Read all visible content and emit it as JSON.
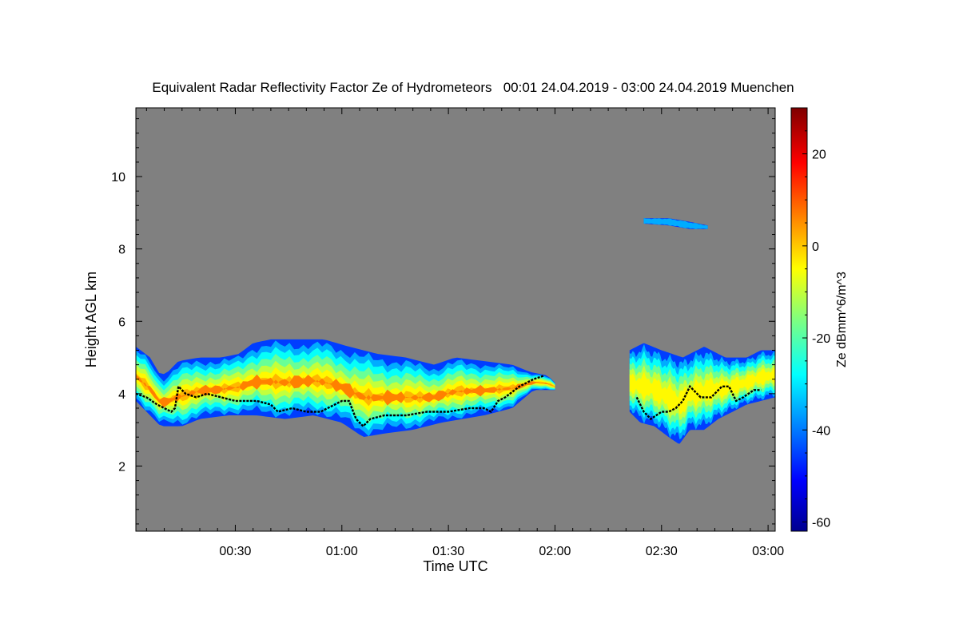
{
  "chart_data": {
    "type": "heatmap",
    "title": "Equivalent Radar Reflectivity Factor Ze of Hydrometeors   00:01 24.04.2019 - 03:00 24.04.2019 Muenchen",
    "xlabel": "Time UTC",
    "ylabel": "Height AGL km",
    "colorbar_label": "Ze dBmm^6/m^3",
    "xlim_minutes": [
      2,
      182
    ],
    "ylim_km": [
      0.2,
      11.9
    ],
    "x_ticks": [
      {
        "minutes": 30,
        "label": "00:30"
      },
      {
        "minutes": 60,
        "label": "01:00"
      },
      {
        "minutes": 90,
        "label": "01:30"
      },
      {
        "minutes": 120,
        "label": "02:00"
      },
      {
        "minutes": 150,
        "label": "02:30"
      },
      {
        "minutes": 180,
        "label": "03:00"
      }
    ],
    "y_ticks": [
      {
        "km": 2,
        "label": "2"
      },
      {
        "km": 4,
        "label": "4"
      },
      {
        "km": 6,
        "label": "6"
      },
      {
        "km": 8,
        "label": "8"
      },
      {
        "km": 10,
        "label": "10"
      }
    ],
    "colorbar_range_dbz": [
      -62,
      30
    ],
    "colorbar_ticks": [
      {
        "value": 20,
        "label": "20"
      },
      {
        "value": 0,
        "label": "0"
      },
      {
        "value": -20,
        "label": "-20"
      },
      {
        "value": -40,
        "label": "-40"
      },
      {
        "value": -60,
        "label": "-60"
      }
    ],
    "colormap": "jet",
    "background_color": "#808080",
    "echoes": [
      {
        "name": "main-precipitation-layer",
        "top_km": [
          [
            2,
            5.3
          ],
          [
            6,
            5.0
          ],
          [
            9,
            4.5
          ],
          [
            11,
            4.6
          ],
          [
            14,
            4.9
          ],
          [
            20,
            5.0
          ],
          [
            26,
            5.0
          ],
          [
            31,
            5.1
          ],
          [
            35,
            5.4
          ],
          [
            40,
            5.5
          ],
          [
            46,
            5.5
          ],
          [
            55,
            5.5
          ],
          [
            62,
            5.3
          ],
          [
            70,
            5.1
          ],
          [
            78,
            5.0
          ],
          [
            86,
            4.8
          ],
          [
            92,
            5.0
          ],
          [
            100,
            4.9
          ],
          [
            108,
            4.8
          ],
          [
            113,
            4.6
          ],
          [
            118,
            4.5
          ],
          [
            120,
            4.3
          ]
        ],
        "base_km": [
          [
            2,
            3.8
          ],
          [
            6,
            3.4
          ],
          [
            9,
            3.1
          ],
          [
            12,
            3.1
          ],
          [
            15,
            3.1
          ],
          [
            20,
            3.3
          ],
          [
            28,
            3.4
          ],
          [
            36,
            3.4
          ],
          [
            44,
            3.3
          ],
          [
            52,
            3.4
          ],
          [
            60,
            3.2
          ],
          [
            66,
            2.8
          ],
          [
            72,
            2.9
          ],
          [
            80,
            3.0
          ],
          [
            88,
            3.2
          ],
          [
            94,
            3.3
          ],
          [
            100,
            3.4
          ],
          [
            108,
            3.6
          ],
          [
            114,
            4.1
          ],
          [
            120,
            4.1
          ]
        ],
        "core_max_dbz": 10
      },
      {
        "name": "eastern-precipitation-cell",
        "top_km": [
          [
            141,
            5.2
          ],
          [
            145,
            5.4
          ],
          [
            150,
            5.2
          ],
          [
            156,
            5.0
          ],
          [
            162,
            5.3
          ],
          [
            168,
            5.0
          ],
          [
            174,
            5.0
          ],
          [
            178,
            5.2
          ],
          [
            182,
            5.2
          ]
        ],
        "base_km": [
          [
            141,
            3.5
          ],
          [
            144,
            3.2
          ],
          [
            148,
            3.1
          ],
          [
            152,
            2.8
          ],
          [
            155,
            2.6
          ],
          [
            158,
            3.0
          ],
          [
            162,
            3.0
          ],
          [
            166,
            3.3
          ],
          [
            170,
            3.5
          ],
          [
            174,
            3.7
          ],
          [
            178,
            3.8
          ],
          [
            182,
            3.9
          ]
        ],
        "core_max_dbz": 0
      },
      {
        "name": "high-cirrus-patch",
        "top_km": [
          [
            145,
            8.85
          ],
          [
            152,
            8.85
          ],
          [
            158,
            8.75
          ],
          [
            163,
            8.65
          ]
        ],
        "base_km": [
          [
            145,
            8.7
          ],
          [
            152,
            8.65
          ],
          [
            158,
            8.55
          ],
          [
            163,
            8.55
          ]
        ],
        "core_max_dbz": -30
      }
    ],
    "melting_layer_line": [
      {
        "series": "segment-1",
        "points": [
          [
            2,
            4.0
          ],
          [
            5,
            3.9
          ],
          [
            8,
            3.7
          ],
          [
            10,
            3.6
          ],
          [
            12,
            3.5
          ],
          [
            13,
            3.6
          ],
          [
            14,
            4.2
          ],
          [
            16,
            4.0
          ],
          [
            19,
            3.9
          ],
          [
            22,
            4.0
          ],
          [
            26,
            3.9
          ],
          [
            30,
            3.8
          ],
          [
            36,
            3.8
          ],
          [
            40,
            3.7
          ],
          [
            42,
            3.5
          ],
          [
            46,
            3.6
          ],
          [
            50,
            3.5
          ],
          [
            54,
            3.5
          ],
          [
            58,
            3.7
          ],
          [
            60,
            3.8
          ],
          [
            62,
            3.8
          ],
          [
            64,
            3.3
          ],
          [
            66,
            3.1
          ],
          [
            68,
            3.3
          ],
          [
            72,
            3.4
          ],
          [
            78,
            3.4
          ],
          [
            84,
            3.5
          ],
          [
            90,
            3.5
          ],
          [
            96,
            3.6
          ],
          [
            100,
            3.6
          ],
          [
            102,
            3.5
          ],
          [
            104,
            3.8
          ],
          [
            106,
            3.9
          ],
          [
            110,
            4.2
          ],
          [
            114,
            4.4
          ],
          [
            117,
            4.5
          ]
        ]
      },
      {
        "series": "segment-2",
        "points": [
          [
            143,
            3.9
          ],
          [
            145,
            3.5
          ],
          [
            147,
            3.3
          ],
          [
            150,
            3.5
          ],
          [
            152,
            3.5
          ],
          [
            154,
            3.6
          ],
          [
            156,
            3.8
          ],
          [
            158,
            4.2
          ],
          [
            161,
            3.9
          ],
          [
            164,
            3.9
          ],
          [
            167,
            4.2
          ],
          [
            169,
            4.2
          ],
          [
            171,
            3.8
          ],
          [
            173,
            3.9
          ],
          [
            176,
            4.1
          ],
          [
            178,
            4.1
          ]
        ]
      }
    ]
  }
}
